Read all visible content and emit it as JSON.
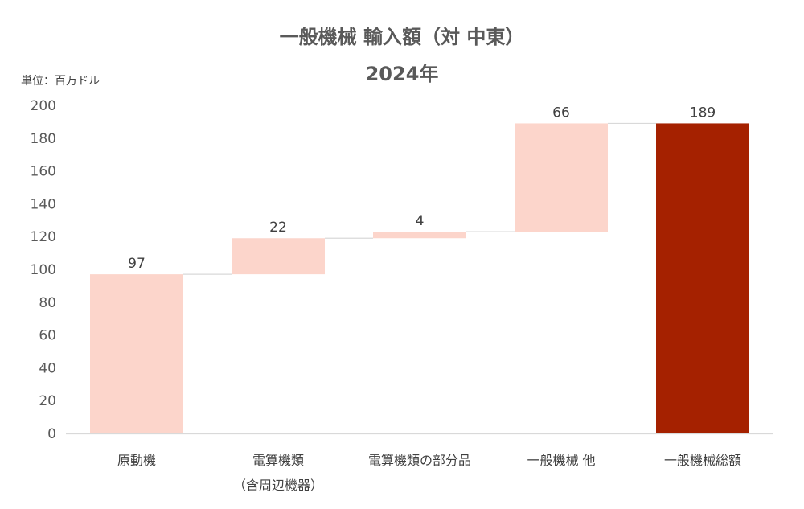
{
  "chart_data": {
    "type": "bar",
    "subtype": "waterfall",
    "title": "一般機械 輸入額（対 中東）",
    "subtitle": "2024年",
    "unit_label": "単位：百万ドル",
    "ylim": [
      0,
      200
    ],
    "yticks": [
      "0",
      "20",
      "40",
      "60",
      "80",
      "100",
      "120",
      "140",
      "160",
      "180",
      "200"
    ],
    "categories": [
      [
        "原動機"
      ],
      [
        "電算機類",
        "（含周辺機器）"
      ],
      [
        "電算機類の部分品"
      ],
      [
        "一般機械 他"
      ],
      [
        "一般機械総額"
      ]
    ],
    "values": [
      97,
      22,
      4,
      66,
      189
    ],
    "labels": [
      "97",
      "22",
      "4",
      "66",
      "189"
    ],
    "is_total": [
      false,
      false,
      false,
      false,
      true
    ],
    "colors": {
      "increment": "#FCD5CB",
      "total": "#A52100",
      "connector": "#D9D9D9",
      "axis": "#D9D9D9"
    }
  }
}
